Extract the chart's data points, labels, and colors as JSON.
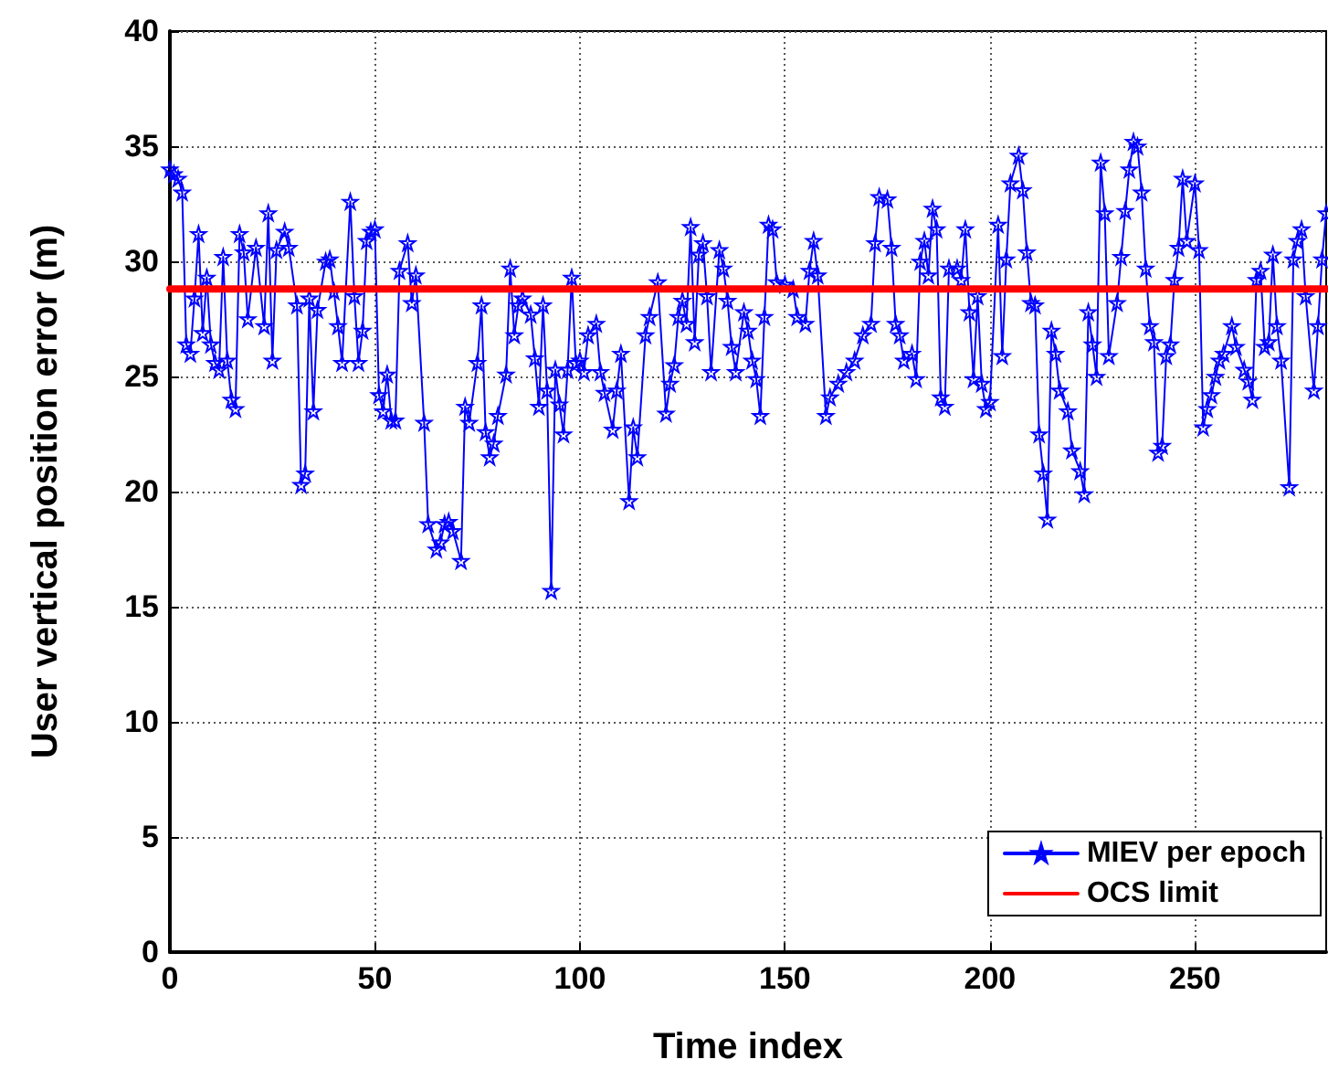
{
  "chart_data": {
    "type": "line",
    "xlabel": "Time index",
    "ylabel": "User vertical position error (m)",
    "xlim": [
      0,
      282
    ],
    "xticks": [
      0,
      50,
      100,
      150,
      200,
      250
    ],
    "ylim": [
      0,
      40
    ],
    "yticks": [
      0,
      5,
      10,
      15,
      20,
      25,
      30,
      35,
      40
    ],
    "grid": true,
    "legend": "bottom right",
    "series": [
      {
        "name": "MIEV per epoch",
        "color": "#0000ff",
        "marker": "star",
        "line_style": "solid",
        "x": [
          0,
          1,
          2,
          3,
          4,
          5,
          6,
          7,
          8,
          9,
          10,
          11,
          12,
          13,
          14,
          15,
          16,
          17,
          18,
          19,
          21,
          23,
          24,
          25,
          26,
          28,
          29,
          31,
          32,
          33,
          34,
          35,
          36,
          38,
          39,
          40,
          41,
          42,
          44,
          45,
          46,
          47,
          48,
          49,
          50,
          51,
          52,
          53,
          54,
          55,
          56,
          58,
          59,
          60,
          62,
          63,
          65,
          66,
          67,
          68,
          69,
          71,
          72,
          73,
          75,
          76,
          77,
          78,
          79,
          80,
          82,
          83,
          84,
          85,
          86,
          88,
          89,
          90,
          91,
          92,
          93,
          94,
          95,
          96,
          97,
          98,
          99,
          100,
          101,
          102,
          104,
          105,
          106,
          108,
          109,
          110,
          112,
          113,
          114,
          116,
          117,
          119,
          121,
          122,
          123,
          124,
          125,
          126,
          127,
          128,
          129,
          130,
          131,
          132,
          134,
          135,
          136,
          137,
          138,
          140,
          141,
          142,
          143,
          144,
          145,
          146,
          147,
          148,
          150,
          152,
          153,
          155,
          156,
          157,
          158,
          160,
          161,
          163,
          165,
          167,
          169,
          171,
          172,
          173,
          175,
          176,
          177,
          178,
          179,
          181,
          182,
          183,
          184,
          185,
          186,
          187,
          188,
          189,
          190,
          192,
          193,
          194,
          195,
          196,
          197,
          198,
          199,
          200,
          202,
          203,
          204,
          205,
          207,
          208,
          209,
          210,
          211,
          212,
          213,
          214,
          215,
          216,
          217,
          219,
          220,
          222,
          223,
          224,
          225,
          226,
          227,
          228,
          229,
          231,
          232,
          233,
          234,
          235,
          236,
          237,
          238,
          239,
          240,
          241,
          242,
          243,
          244,
          245,
          246,
          247,
          248,
          250,
          251,
          252,
          253,
          254,
          255,
          256,
          257,
          259,
          260,
          262,
          263,
          264,
          265,
          266,
          267,
          268,
          269,
          270,
          271,
          273,
          274,
          275,
          276,
          277,
          279,
          280,
          281,
          282
        ],
        "values": [
          34.0,
          33.8,
          33.6,
          33.0,
          26.4,
          26.0,
          28.4,
          31.2,
          26.9,
          29.3,
          26.4,
          25.6,
          25.3,
          30.2,
          25.7,
          24.0,
          23.6,
          31.2,
          30.4,
          27.5,
          30.6,
          27.2,
          32.1,
          25.7,
          30.5,
          31.3,
          30.6,
          28.1,
          20.3,
          20.8,
          28.4,
          23.5,
          27.9,
          30.0,
          30.1,
          28.7,
          27.2,
          25.6,
          32.6,
          28.5,
          25.6,
          27.0,
          30.9,
          31.3,
          31.4,
          24.2,
          23.5,
          25.1,
          23.1,
          23.1,
          29.6,
          30.8,
          28.2,
          29.4,
          23.0,
          18.6,
          17.5,
          17.8,
          18.6,
          18.7,
          18.3,
          17.0,
          23.7,
          23.0,
          25.6,
          28.1,
          22.6,
          21.5,
          22.1,
          23.3,
          25.1,
          29.7,
          26.8,
          28.1,
          28.4,
          27.7,
          25.8,
          23.7,
          28.1,
          24.4,
          15.7,
          25.3,
          23.8,
          22.5,
          25.3,
          29.3,
          25.6,
          25.7,
          25.2,
          26.8,
          27.3,
          25.2,
          24.3,
          22.7,
          24.4,
          26.0,
          19.6,
          22.8,
          21.5,
          26.8,
          27.6,
          29.1,
          23.4,
          24.7,
          25.5,
          27.6,
          28.3,
          27.3,
          31.5,
          26.5,
          30.3,
          30.8,
          28.5,
          25.2,
          30.5,
          29.7,
          28.3,
          26.3,
          25.2,
          27.8,
          27.0,
          25.7,
          24.9,
          23.3,
          27.6,
          31.6,
          31.4,
          29.1,
          29.0,
          28.8,
          27.6,
          27.3,
          29.6,
          30.9,
          29.4,
          23.3,
          24.1,
          24.7,
          25.2,
          25.7,
          26.8,
          27.3,
          30.8,
          32.8,
          32.7,
          30.6,
          27.3,
          26.8,
          25.7,
          26.0,
          24.9,
          30.0,
          30.9,
          29.4,
          32.3,
          31.4,
          24.1,
          23.7,
          29.7,
          29.7,
          29.2,
          31.4,
          27.8,
          24.9,
          28.5,
          24.7,
          23.6,
          23.9,
          31.6,
          25.9,
          30.1,
          33.4,
          34.6,
          33.1,
          30.4,
          28.2,
          28.1,
          22.5,
          20.8,
          18.8,
          27.0,
          26.0,
          24.4,
          23.5,
          21.8,
          20.9,
          19.9,
          27.8,
          26.4,
          25.0,
          34.3,
          32.1,
          25.9,
          28.2,
          30.2,
          32.2,
          34.0,
          35.2,
          35.0,
          33.0,
          29.7,
          27.2,
          26.5,
          21.7,
          22.0,
          25.9,
          26.4,
          29.2,
          30.6,
          33.6,
          30.9,
          33.4,
          30.5,
          22.8,
          23.6,
          24.2,
          25.0,
          25.7,
          26.0,
          27.2,
          26.3,
          25.3,
          24.8,
          24.0,
          29.2,
          29.6,
          26.3,
          26.5,
          30.3,
          27.2,
          25.7,
          20.2,
          30.1,
          30.9,
          31.4,
          28.5,
          24.4,
          27.2,
          30.1,
          32.1
        ]
      },
      {
        "name": "OCS limit",
        "color": "#ff0000",
        "marker": "none",
        "line_style": "solid",
        "x": [
          0,
          282
        ],
        "values": [
          28.8,
          28.8
        ]
      }
    ]
  }
}
